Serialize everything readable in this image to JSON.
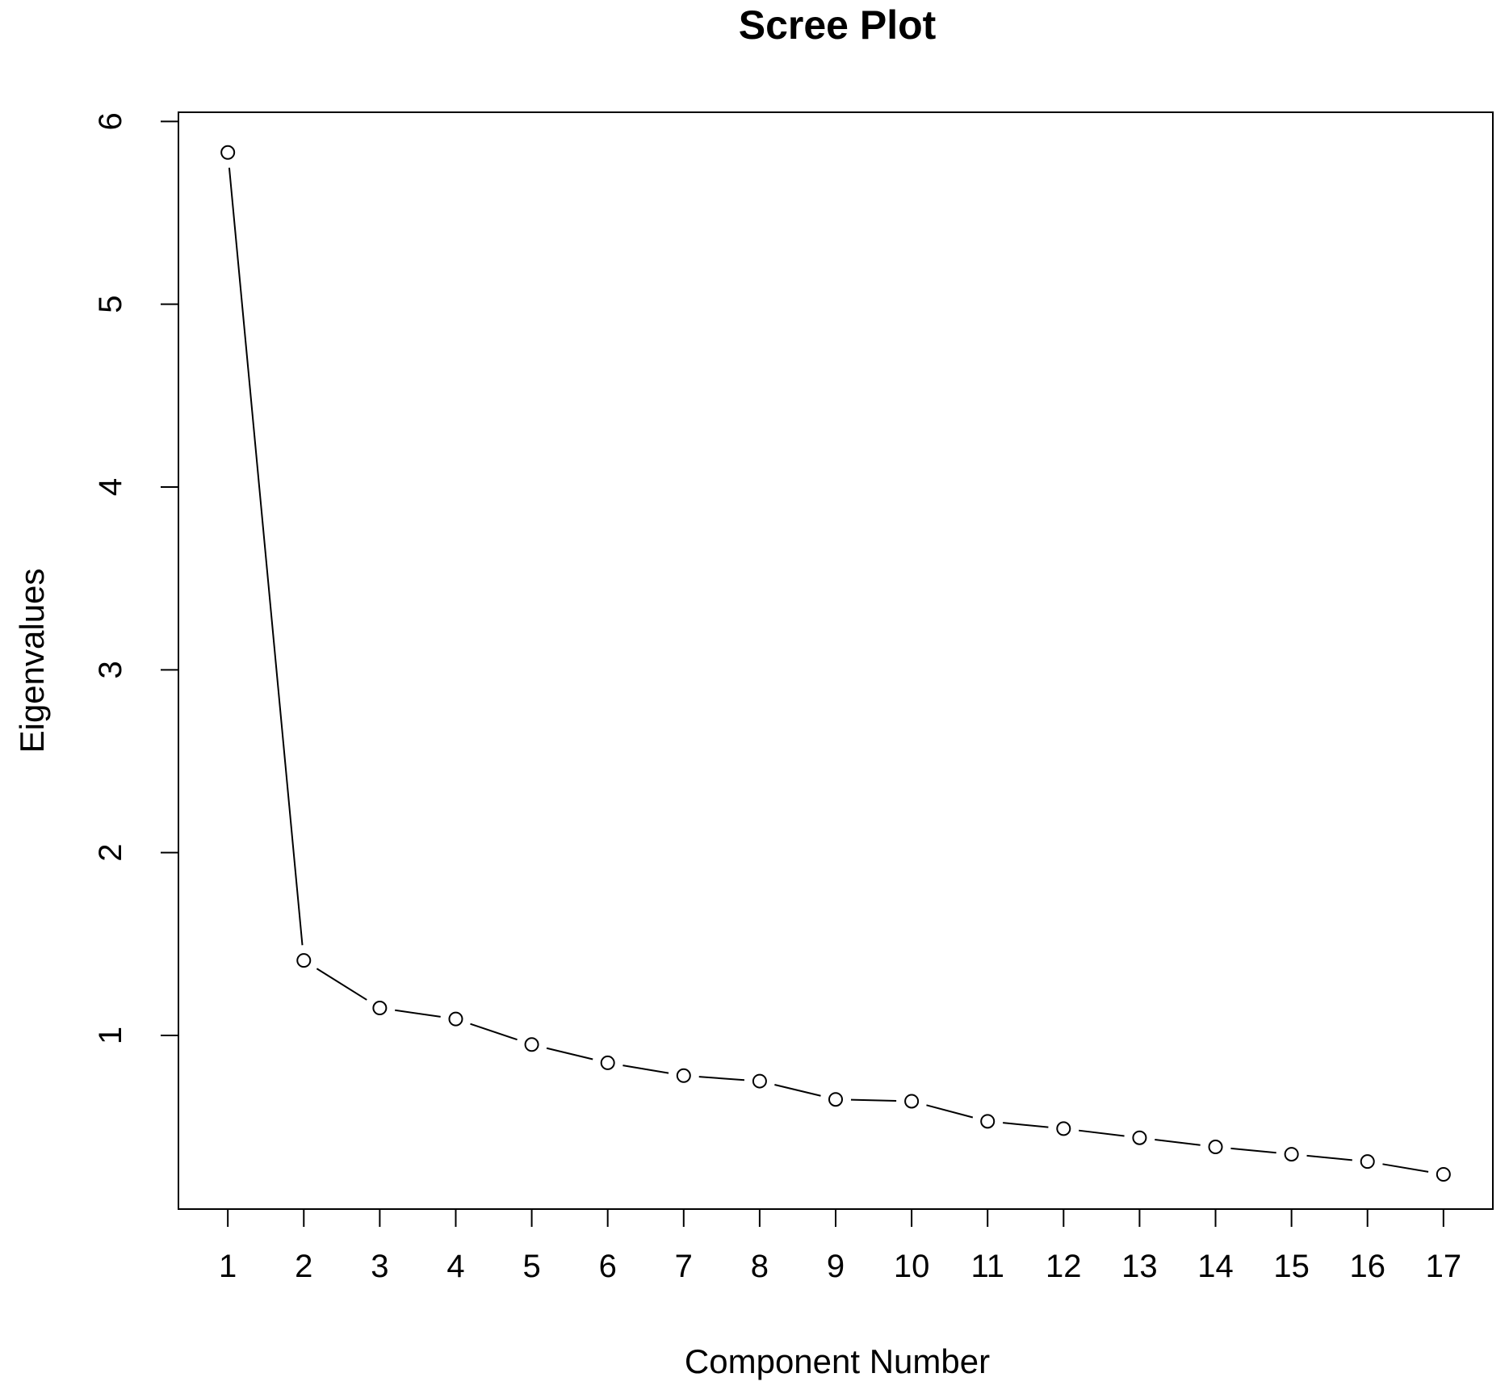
{
  "chart_data": {
    "type": "line",
    "title": "Scree Plot",
    "xlabel": "Component Number",
    "ylabel": "Eigenvalues",
    "x": [
      1,
      2,
      3,
      4,
      5,
      6,
      7,
      8,
      9,
      10,
      11,
      12,
      13,
      14,
      15,
      16,
      17
    ],
    "series": [
      {
        "values": [
          5.83,
          1.41,
          1.15,
          1.09,
          0.95,
          0.85,
          0.78,
          0.75,
          0.65,
          0.64,
          0.53,
          0.49,
          0.44,
          0.39,
          0.35,
          0.31,
          0.24
        ]
      }
    ],
    "x_ticks": [
      "1",
      "2",
      "3",
      "4",
      "5",
      "6",
      "7",
      "8",
      "9",
      "10",
      "11",
      "12",
      "13",
      "14",
      "15",
      "16",
      "17"
    ],
    "y_ticks": [
      "1",
      "2",
      "3",
      "4",
      "5",
      "6"
    ],
    "xlim": [
      0.35,
      17.65
    ],
    "ylim": [
      0.05,
      6.05
    ],
    "marker": "open-circle",
    "line_style": "solid with gaps at markers",
    "grid": false,
    "legend": "none",
    "colors": {
      "line": "#000000",
      "marker_fill": "#ffffff",
      "background": "#ffffff"
    }
  }
}
